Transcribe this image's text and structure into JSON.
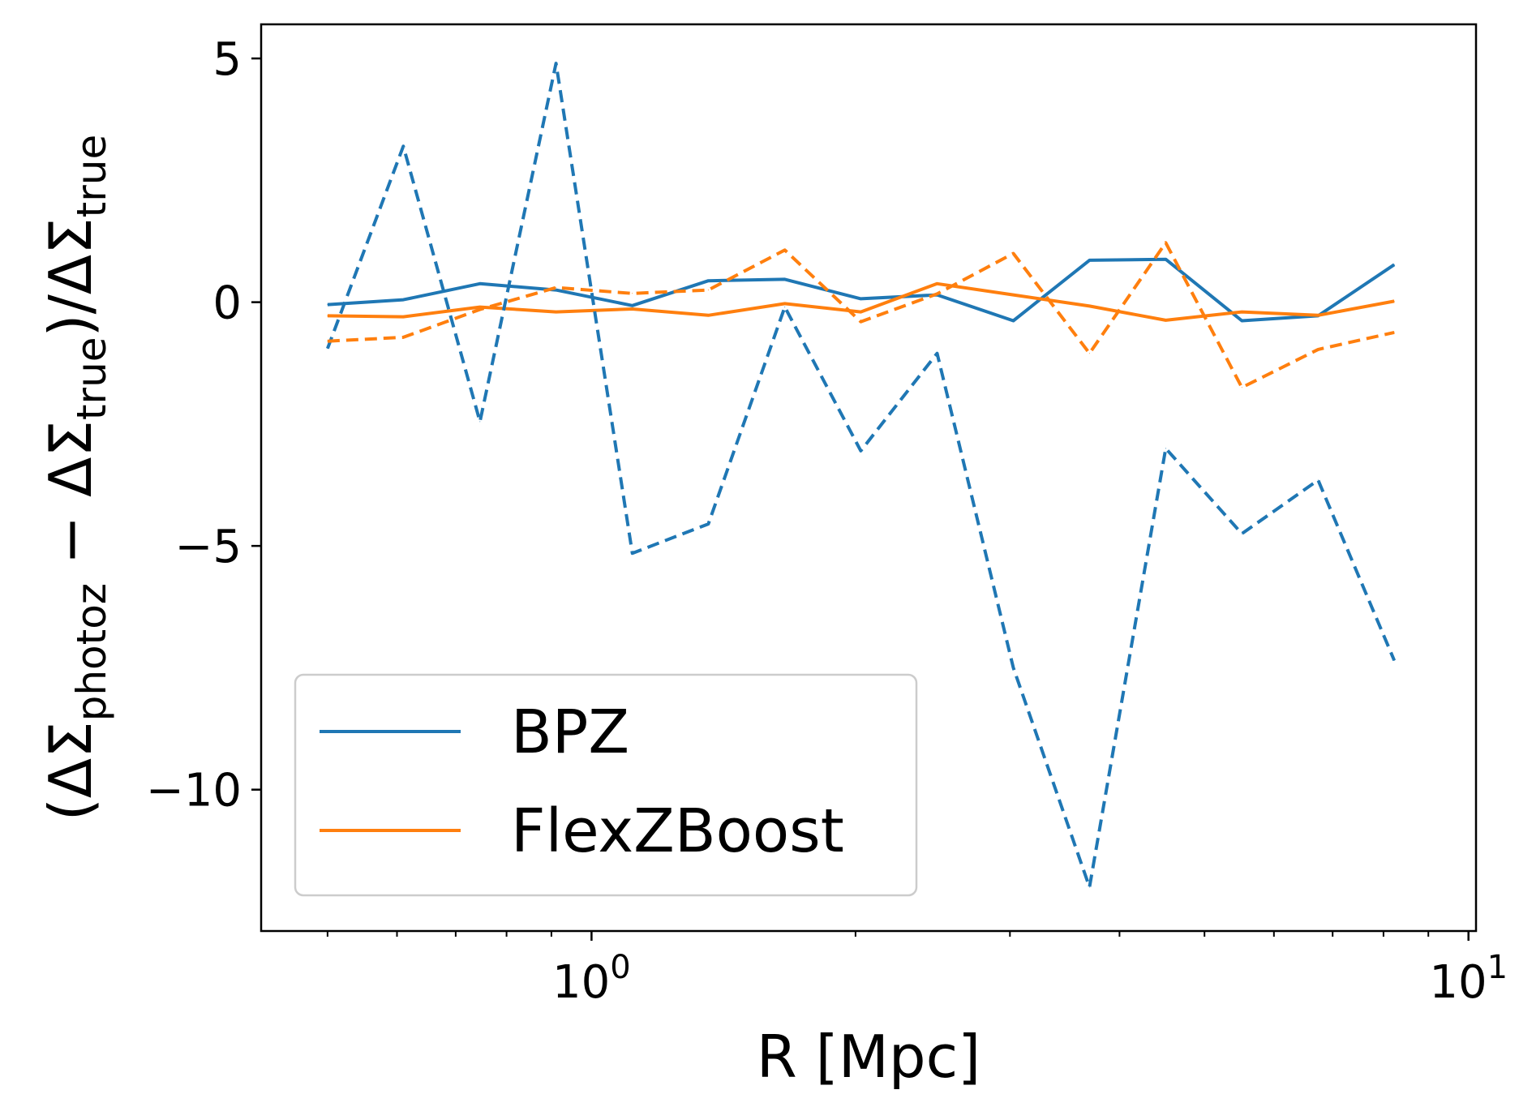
{
  "chart_data": {
    "type": "line",
    "xscale": "log",
    "xlim": [
      0.42,
      10.2
    ],
    "ylim": [
      -12.9,
      5.7
    ],
    "xlabel": "R [Mpc]",
    "ylabel": {
      "open": "(ΔΣ",
      "sub1": "photoz",
      "minus": " − ΔΣ",
      "sub2": "true",
      "mid": ")/ΔΣ",
      "sub3": "true"
    },
    "x_ticks": [
      {
        "value": 1,
        "base": "10",
        "exp": "0"
      },
      {
        "value": 10,
        "base": "10",
        "exp": "1"
      }
    ],
    "y_ticks": [
      {
        "value": 5,
        "label": "5"
      },
      {
        "value": 0,
        "label": "0"
      },
      {
        "value": -5,
        "label": "−5"
      },
      {
        "value": -10,
        "label": "−10"
      }
    ],
    "grid": false,
    "legend_position": "lower-left",
    "x": [
      0.5,
      0.61,
      0.746,
      0.911,
      1.113,
      1.359,
      1.661,
      2.028,
      2.478,
      3.027,
      3.697,
      4.516,
      5.516,
      6.738,
      8.23
    ],
    "series": [
      {
        "name": "BPZ",
        "color": "#1f77b4",
        "style": "solid",
        "in_legend": true,
        "values": [
          -0.05,
          0.05,
          0.38,
          0.25,
          -0.07,
          0.44,
          0.47,
          0.07,
          0.15,
          -0.38,
          0.86,
          0.88,
          -0.38,
          -0.28,
          0.77
        ]
      },
      {
        "name": "FlexZBoost",
        "color": "#ff7f0e",
        "style": "solid",
        "in_legend": true,
        "values": [
          -0.28,
          -0.3,
          -0.1,
          -0.2,
          -0.14,
          -0.27,
          -0.03,
          -0.2,
          0.38,
          0.15,
          -0.08,
          -0.37,
          -0.2,
          -0.27,
          0.02
        ]
      },
      {
        "name": "",
        "color": "#1f77b4",
        "style": "dashed",
        "in_legend": false,
        "values": [
          -0.95,
          3.2,
          -2.45,
          4.9,
          -5.15,
          -4.55,
          -0.1,
          -3.05,
          -1.05,
          -7.5,
          -12.0,
          -3.0,
          -4.75,
          -3.65,
          -7.35
        ]
      },
      {
        "name": "",
        "color": "#ff7f0e",
        "style": "dashed",
        "in_legend": false,
        "values": [
          -0.8,
          -0.72,
          -0.15,
          0.3,
          0.18,
          0.25,
          1.07,
          -0.4,
          0.17,
          1.0,
          -1.05,
          1.22,
          -1.75,
          -0.97,
          -0.62
        ]
      }
    ]
  }
}
